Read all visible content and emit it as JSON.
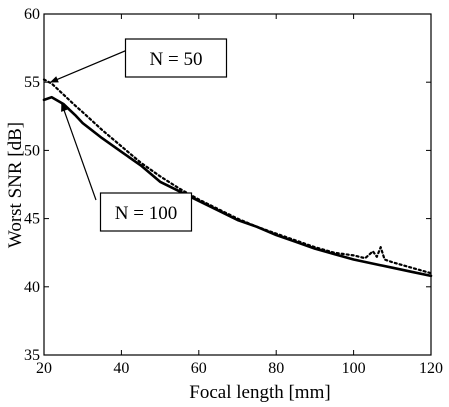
{
  "chart_data": {
    "type": "line",
    "title": "",
    "xlabel": "Focal length [mm]",
    "ylabel": "Worst SNR [dB]",
    "xlim": [
      20,
      120
    ],
    "ylim": [
      35,
      60
    ],
    "xticks": [
      20,
      40,
      60,
      80,
      100,
      120
    ],
    "yticks": [
      35,
      40,
      45,
      50,
      55,
      60
    ],
    "grid": false,
    "series": [
      {
        "name": "N = 50",
        "style": "dotted",
        "color": "#000000",
        "x": [
          20,
          22,
          25,
          28,
          30,
          35,
          40,
          45,
          50,
          55,
          60,
          65,
          70,
          75,
          80,
          85,
          90,
          95,
          100,
          103,
          105,
          106,
          107,
          108,
          110,
          115,
          120
        ],
        "y": [
          55.2,
          54.9,
          54.1,
          53.3,
          52.8,
          51.5,
          50.3,
          49.1,
          48.1,
          47.2,
          46.4,
          45.7,
          45.0,
          44.4,
          43.9,
          43.4,
          42.9,
          42.5,
          42.3,
          42.1,
          42.6,
          42.2,
          42.9,
          42.0,
          41.8,
          41.4,
          41.0
        ]
      },
      {
        "name": "N = 100",
        "style": "solid",
        "color": "#000000",
        "x": [
          20,
          22,
          25,
          28,
          30,
          35,
          40,
          45,
          50,
          55,
          60,
          65,
          70,
          75,
          80,
          85,
          90,
          95,
          100,
          105,
          110,
          115,
          120
        ],
        "y": [
          53.7,
          53.9,
          53.4,
          52.6,
          52.0,
          50.9,
          49.9,
          48.9,
          47.7,
          47.0,
          46.3,
          45.6,
          44.9,
          44.4,
          43.8,
          43.3,
          42.8,
          42.4,
          42.0,
          41.7,
          41.4,
          41.1,
          40.8
        ]
      }
    ],
    "annotations": [
      {
        "text": "N = 50",
        "series": "N = 50",
        "at_x": 21.5
      },
      {
        "text": "N = 100",
        "series": "N = 100",
        "at_x": 24.5
      }
    ]
  }
}
